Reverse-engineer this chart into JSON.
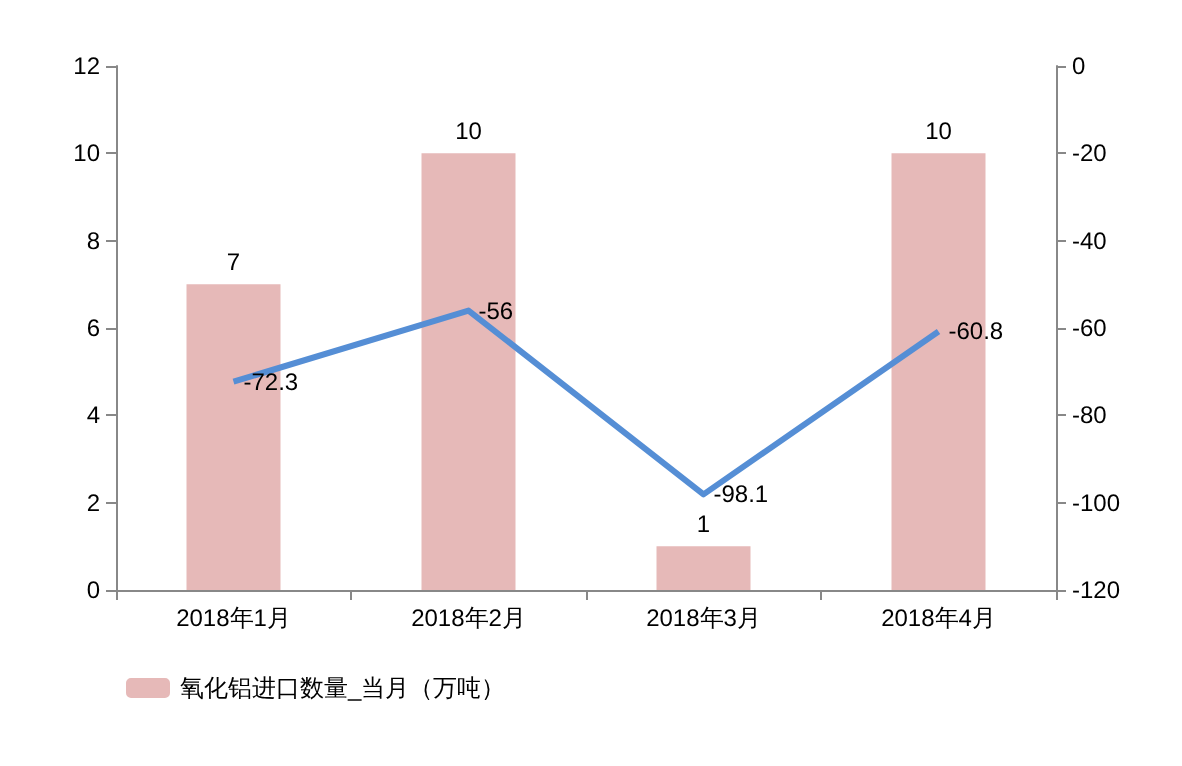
{
  "chart_data": {
    "type": "bar",
    "categories": [
      "2018年1月",
      "2018年2月",
      "2018年3月",
      "2018年4月"
    ],
    "series": [
      {
        "name": "氧化铝进口数量_当月（万吨）",
        "color": "#e6b9b8",
        "values": [
          7,
          10,
          1,
          10
        ]
      },
      {
        "type": "line",
        "axis": "y2",
        "color": "#558ed5",
        "values": [
          -72.3,
          -56,
          -98.1,
          -60.8
        ]
      }
    ],
    "ylim": [
      0,
      12
    ],
    "yticks": [
      0,
      2,
      4,
      6,
      8,
      10,
      12
    ],
    "y2lim": [
      -120,
      0
    ],
    "y2ticks": [
      -120,
      -100,
      -80,
      -60,
      -40,
      -20,
      0
    ],
    "data_labels": true,
    "legend": "bottom left",
    "marker": "none"
  }
}
